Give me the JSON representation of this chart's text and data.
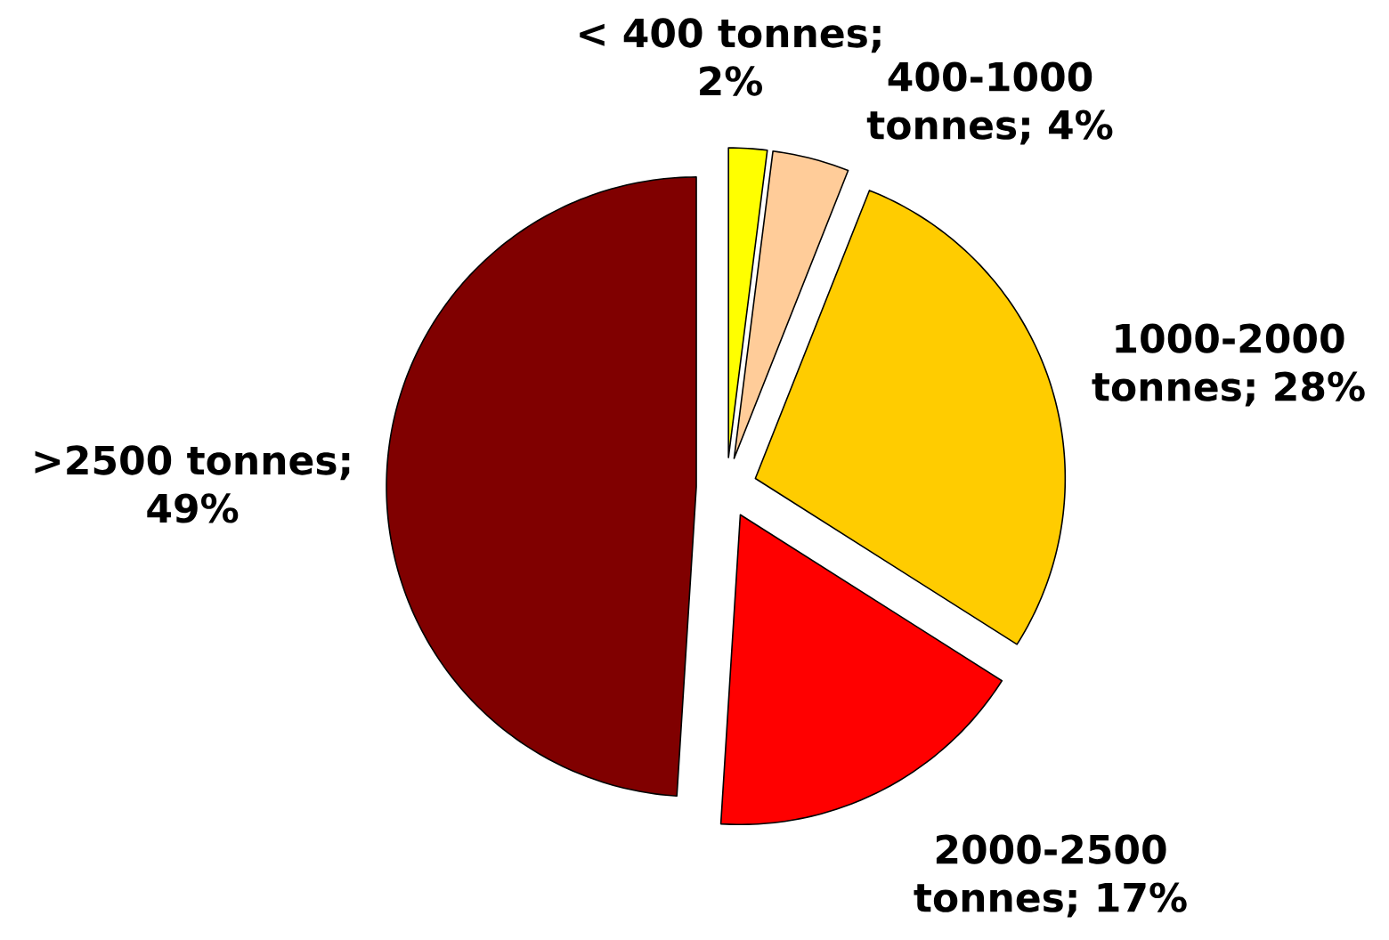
{
  "chart_data": {
    "type": "pie",
    "categories": [
      "< 400 tonnes; 2%",
      "400-1000 tonnes; 4%",
      "1000-2000 tonnes; 28%",
      "2000-2500 tonnes; 17%",
      ">2500 tonnes; 49%"
    ],
    "values": [
      2,
      4,
      28,
      17,
      49
    ],
    "colors": [
      "#ffff00",
      "#ffcc99",
      "#ffcc00",
      "#ff0000",
      "#800000"
    ]
  }
}
